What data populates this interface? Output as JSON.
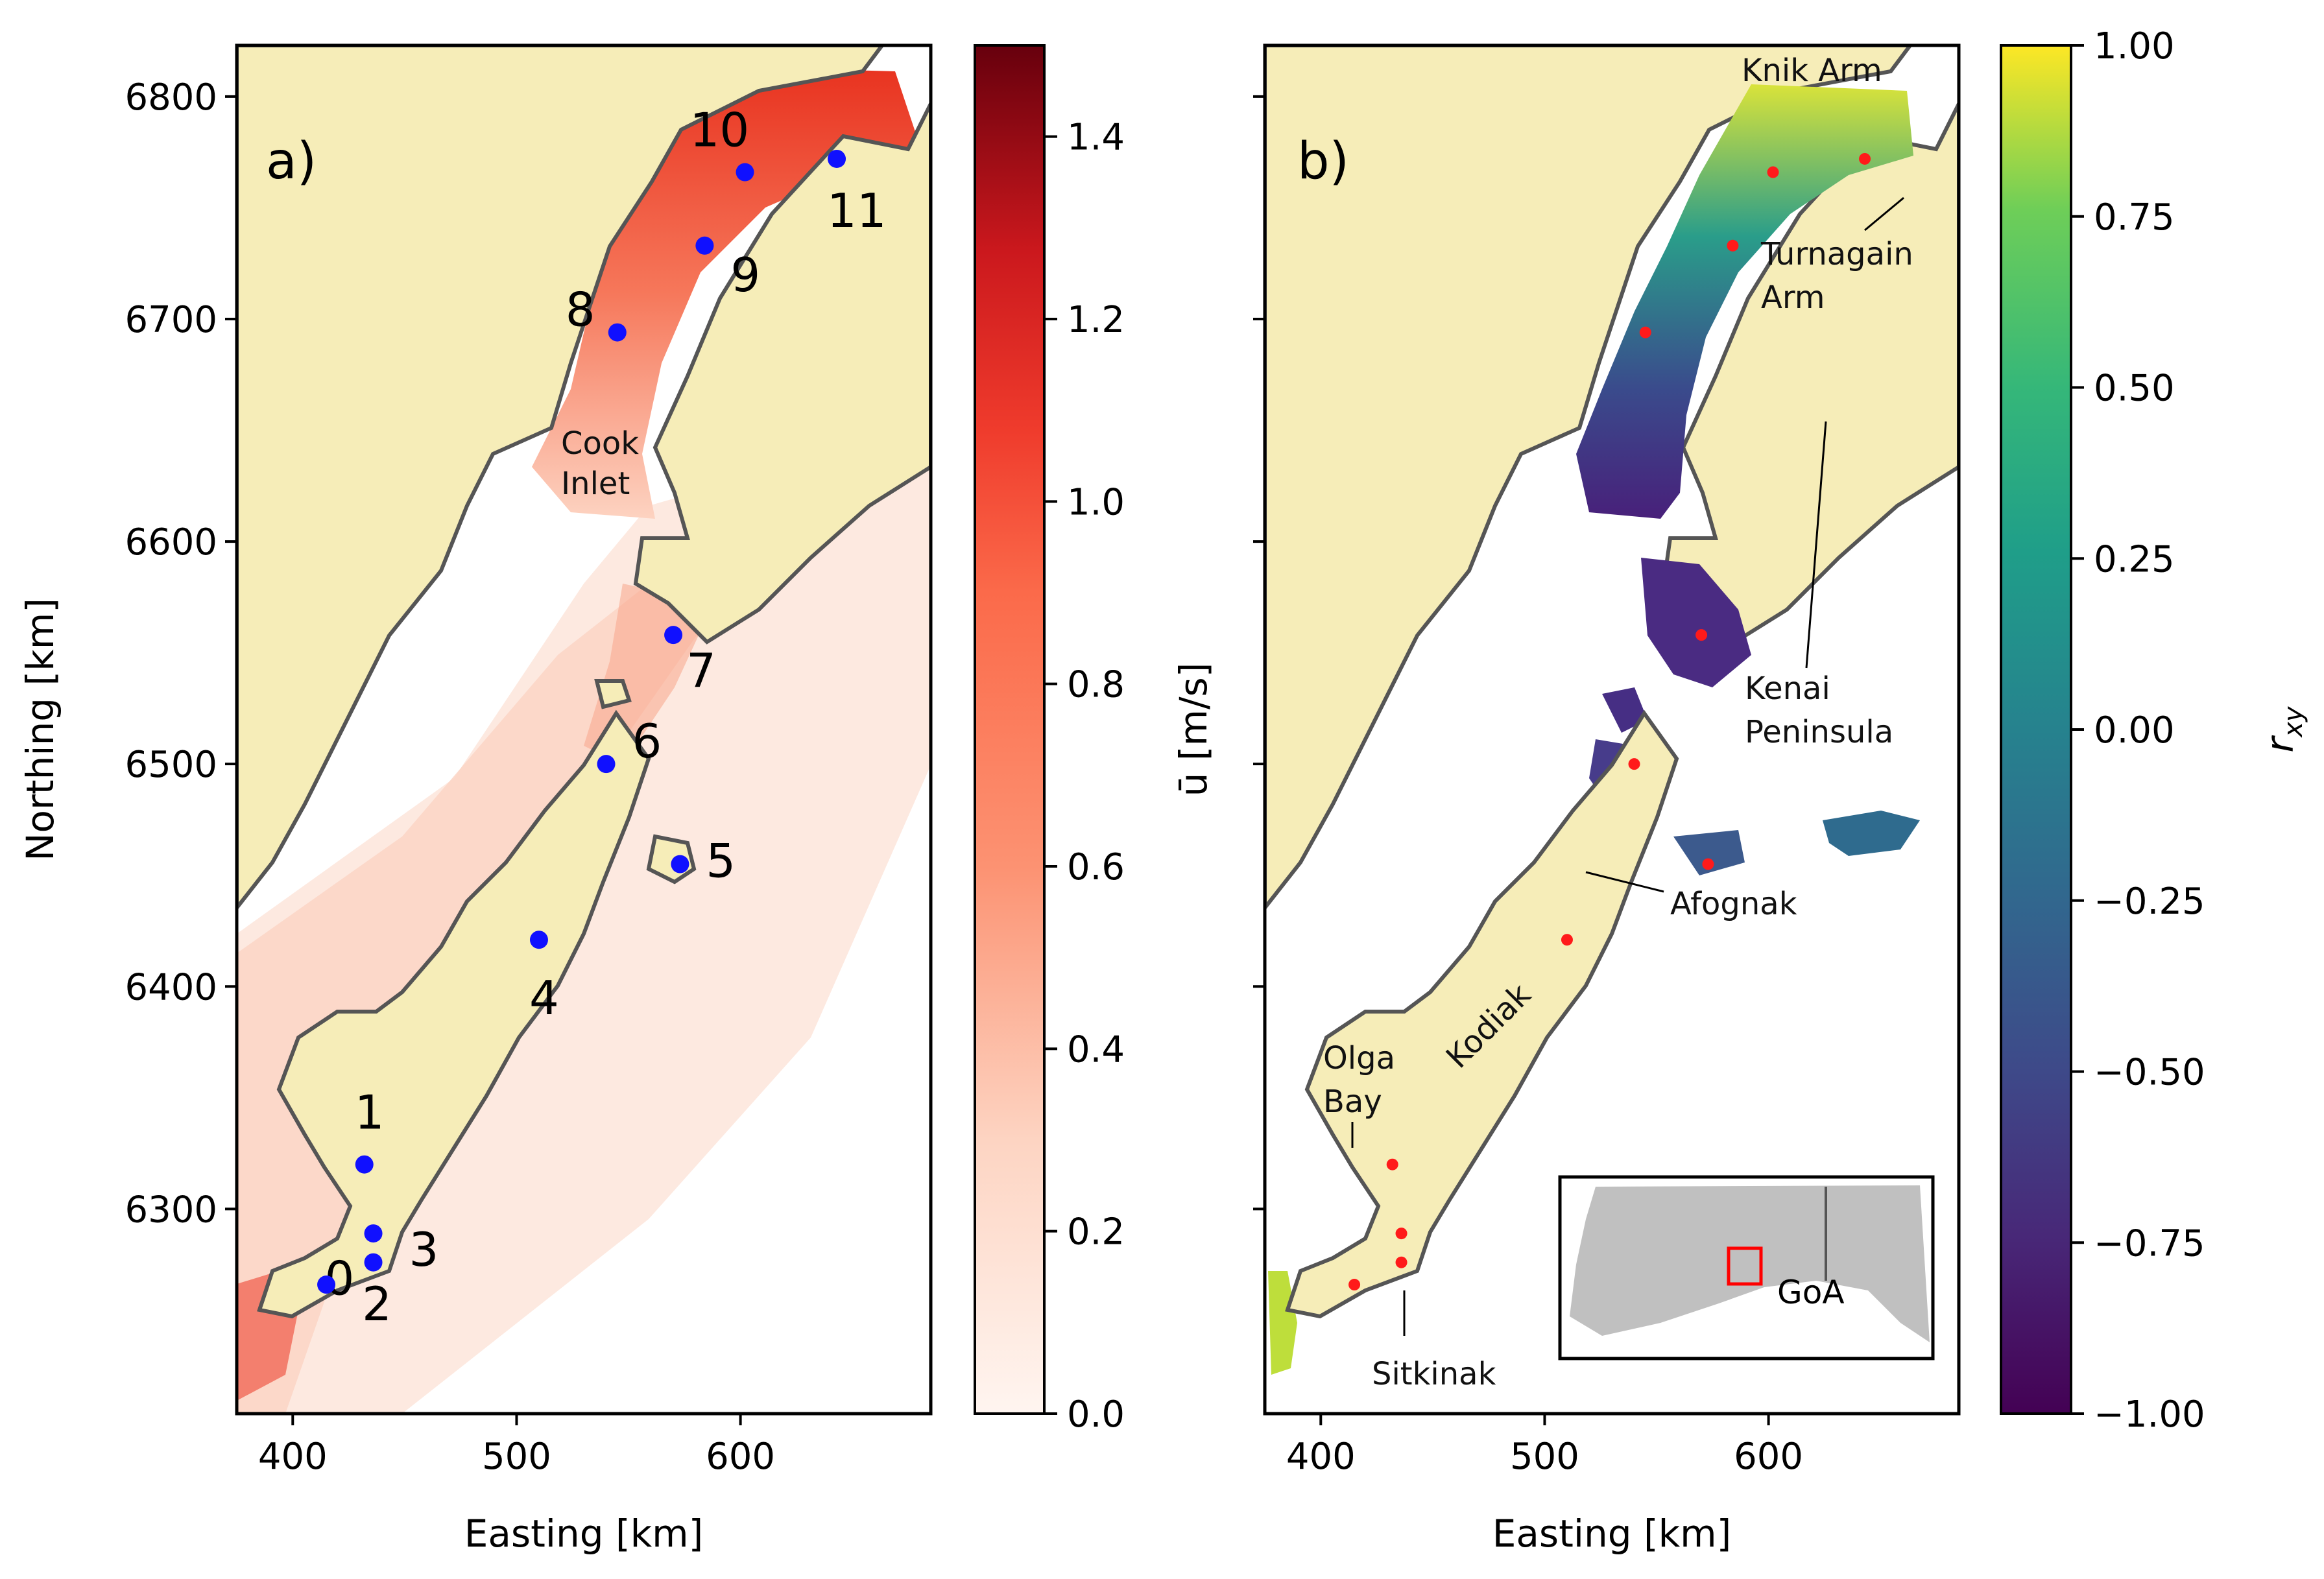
{
  "figure": {
    "panel_a": {
      "label": "a)",
      "xlabel": "Easting [km]",
      "ylabel": "Northing [km]",
      "xticks": [
        400,
        500,
        600
      ],
      "yticks": [
        6300,
        6400,
        6500,
        6600,
        6700,
        6800
      ],
      "xlim": [
        375,
        685
      ],
      "ylim": [
        6208,
        6823
      ],
      "place_labels": [
        "Cook",
        "Inlet"
      ],
      "stations": [
        {
          "id": "0",
          "x": 436,
          "y": 6276
        },
        {
          "id": "1",
          "x": 432,
          "y": 6320
        },
        {
          "id": "2",
          "x": 415,
          "y": 6266
        },
        {
          "id": "3",
          "x": 436,
          "y": 6289
        },
        {
          "id": "4",
          "x": 510,
          "y": 6421
        },
        {
          "id": "5",
          "x": 573,
          "y": 6455
        },
        {
          "id": "6",
          "x": 540,
          "y": 6500
        },
        {
          "id": "7",
          "x": 570,
          "y": 6558
        },
        {
          "id": "8",
          "x": 545,
          "y": 6694
        },
        {
          "id": "9",
          "x": 584,
          "y": 6733
        },
        {
          "id": "10",
          "x": 602,
          "y": 6766
        },
        {
          "id": "11",
          "x": 643,
          "y": 6772
        }
      ],
      "colorbar": {
        "label": "ū [m/s]",
        "ticks": [
          "0.0",
          "0.2",
          "0.4",
          "0.6",
          "0.8",
          "1.0",
          "1.2",
          "1.4"
        ],
        "range": [
          0.0,
          1.5
        ],
        "colormap": "Reds"
      }
    },
    "panel_b": {
      "label": "b)",
      "xlabel": "Easting [km]",
      "xticks": [
        400,
        500,
        600
      ],
      "place_labels": {
        "knik_arm": "Knik Arm",
        "turnagain_1": "Turnagain",
        "turnagain_2": "Arm",
        "kenai_1": "Kenai",
        "kenai_2": "Peninsula",
        "afognak": "Afognak",
        "kodiak": "Kodiak",
        "olga_1": "Olga",
        "olga_2": "Bay",
        "sitkinak": "Sitkinak"
      },
      "inset": {
        "label": "GoA"
      },
      "colorbar": {
        "label": "r",
        "label_sub": "xy",
        "ticks": [
          "1.00",
          "0.75",
          "0.50",
          "0.25",
          "0.00",
          "−0.25",
          "−0.50",
          "−0.75",
          "−1.00"
        ],
        "range": [
          -1.0,
          1.0
        ],
        "colormap": "viridis"
      }
    },
    "colors": {
      "land": "#f6edb8",
      "coast": "#555555",
      "station": "#1010ff",
      "red_dot": "#ff1a1a",
      "inset_land": "#c0c0c0",
      "inset_box": "#ff0000"
    }
  }
}
